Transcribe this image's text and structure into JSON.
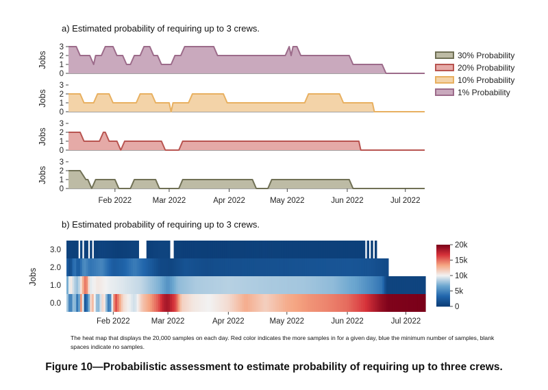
{
  "figure_caption": "Figure 10—Probabilistic assessment to estimate probability of requiring up to three crews.",
  "chart_data": [
    {
      "type": "area",
      "title": "a) Estimated probability of requiring up to 3 crews.",
      "ylabel": "Jobs",
      "ylim": [
        0,
        3
      ],
      "yticks": [
        0,
        1,
        2,
        3
      ],
      "xlim": [
        "2022-01-08",
        "2022-07-11"
      ],
      "xticks": [
        "2022-02-01",
        "2022-03-01",
        "2022-04-01",
        "2022-05-01",
        "2022-06-01",
        "2022-07-01"
      ],
      "xtick_labels": [
        "Feb 2022",
        "Mar 2022",
        "Apr 2022",
        "May 2022",
        "Jun 2022",
        "Jul 2022"
      ],
      "legend_position": "right",
      "series": [
        {
          "name": "1% Probability",
          "color": "#9c6b8a",
          "fill": "#c9a9bd",
          "points": [
            [
              "2022-01-08",
              3
            ],
            [
              "2022-01-12",
              3
            ],
            [
              "2022-01-14",
              2
            ],
            [
              "2022-01-19",
              2
            ],
            [
              "2022-01-21",
              1
            ],
            [
              "2022-01-22",
              2
            ],
            [
              "2022-01-25",
              2
            ],
            [
              "2022-01-27",
              3
            ],
            [
              "2022-01-31",
              3
            ],
            [
              "2022-02-02",
              2
            ],
            [
              "2022-02-05",
              2
            ],
            [
              "2022-02-07",
              1
            ],
            [
              "2022-02-09",
              1
            ],
            [
              "2022-02-11",
              2
            ],
            [
              "2022-02-14",
              2
            ],
            [
              "2022-02-16",
              3
            ],
            [
              "2022-02-19",
              3
            ],
            [
              "2022-02-21",
              2
            ],
            [
              "2022-02-23",
              2
            ],
            [
              "2022-02-25",
              1
            ],
            [
              "2022-03-02",
              1
            ],
            [
              "2022-03-04",
              2
            ],
            [
              "2022-03-07",
              2
            ],
            [
              "2022-03-09",
              3
            ],
            [
              "2022-03-24",
              3
            ],
            [
              "2022-03-26",
              2
            ],
            [
              "2022-04-30",
              2
            ],
            [
              "2022-05-02",
              3
            ],
            [
              "2022-05-03",
              2
            ],
            [
              "2022-05-04",
              3
            ],
            [
              "2022-05-06",
              3
            ],
            [
              "2022-05-08",
              2
            ],
            [
              "2022-06-02",
              2
            ],
            [
              "2022-06-04",
              1
            ],
            [
              "2022-06-19",
              1
            ],
            [
              "2022-06-21",
              0
            ],
            [
              "2022-07-11",
              0
            ]
          ]
        },
        {
          "name": "10% Probability",
          "color": "#e8b060",
          "fill": "#f3d3a8",
          "points": [
            [
              "2022-01-08",
              2
            ],
            [
              "2022-01-14",
              2
            ],
            [
              "2022-01-16",
              1
            ],
            [
              "2022-01-21",
              1
            ],
            [
              "2022-01-23",
              2
            ],
            [
              "2022-01-29",
              2
            ],
            [
              "2022-01-31",
              1
            ],
            [
              "2022-02-12",
              1
            ],
            [
              "2022-02-14",
              2
            ],
            [
              "2022-02-20",
              2
            ],
            [
              "2022-02-22",
              1
            ],
            [
              "2022-03-01",
              1
            ],
            [
              "2022-03-02",
              0
            ],
            [
              "2022-03-03",
              1
            ],
            [
              "2022-03-11",
              1
            ],
            [
              "2022-03-13",
              2
            ],
            [
              "2022-03-29",
              2
            ],
            [
              "2022-03-31",
              1
            ],
            [
              "2022-05-10",
              1
            ],
            [
              "2022-05-12",
              2
            ],
            [
              "2022-05-28",
              2
            ],
            [
              "2022-05-30",
              1
            ],
            [
              "2022-06-14",
              1
            ],
            [
              "2022-06-15",
              0
            ],
            [
              "2022-07-11",
              0
            ]
          ]
        },
        {
          "name": "20% Probability",
          "color": "#b85450",
          "fill": "#e5aaa7",
          "points": [
            [
              "2022-01-08",
              2
            ],
            [
              "2022-01-14",
              2
            ],
            [
              "2022-01-16",
              1
            ],
            [
              "2022-01-24",
              1
            ],
            [
              "2022-01-26",
              2
            ],
            [
              "2022-01-27",
              2
            ],
            [
              "2022-01-29",
              1
            ],
            [
              "2022-02-02",
              1
            ],
            [
              "2022-02-04",
              0
            ],
            [
              "2022-02-06",
              1
            ],
            [
              "2022-02-25",
              1
            ],
            [
              "2022-02-27",
              0
            ],
            [
              "2022-03-06",
              0
            ],
            [
              "2022-03-08",
              1
            ],
            [
              "2022-06-07",
              1
            ],
            [
              "2022-06-08",
              0
            ],
            [
              "2022-07-11",
              0
            ]
          ]
        },
        {
          "name": "30% Probability",
          "color": "#707055",
          "fill": "#bdbba5",
          "points": [
            [
              "2022-01-08",
              2
            ],
            [
              "2022-01-14",
              2
            ],
            [
              "2022-01-17",
              1
            ],
            [
              "2022-01-18",
              1
            ],
            [
              "2022-01-20",
              0
            ],
            [
              "2022-01-22",
              1
            ],
            [
              "2022-02-01",
              1
            ],
            [
              "2022-02-03",
              0
            ],
            [
              "2022-02-09",
              0
            ],
            [
              "2022-02-11",
              1
            ],
            [
              "2022-02-22",
              1
            ],
            [
              "2022-02-24",
              0
            ],
            [
              "2022-03-06",
              0
            ],
            [
              "2022-03-08",
              1
            ],
            [
              "2022-04-13",
              1
            ],
            [
              "2022-04-15",
              0
            ],
            [
              "2022-04-21",
              0
            ],
            [
              "2022-04-23",
              1
            ],
            [
              "2022-06-02",
              1
            ],
            [
              "2022-06-04",
              0
            ],
            [
              "2022-07-11",
              0
            ]
          ]
        }
      ]
    },
    {
      "type": "heatmap",
      "title": "b) Estimated probability of requiring up to 3 crews.",
      "ylabel": "Jobs",
      "ylim": [
        -0.5,
        3.5
      ],
      "yticks": [
        0,
        1,
        2,
        3
      ],
      "ytick_labels": [
        "0.0",
        "1.0",
        "2.0",
        "3.0"
      ],
      "xlim": [
        "2022-01-08",
        "2022-07-11"
      ],
      "xticks": [
        "2022-02-01",
        "2022-03-01",
        "2022-04-01",
        "2022-05-01",
        "2022-06-01",
        "2022-07-01"
      ],
      "xtick_labels": [
        "Feb 2022",
        "Mar 2022",
        "Apr 2022",
        "May 2022",
        "Jun 2022",
        "Jul 2022"
      ],
      "colorscale": [
        "#0b3c75",
        "#2166ac",
        "#6ea8d0",
        "#f2f2f2",
        "#f5a582",
        "#d6323a",
        "#7a0019"
      ],
      "colorbar": {
        "min": 0,
        "max": 20000,
        "ticks": [
          0,
          5000,
          10000,
          15000,
          20000
        ],
        "tick_labels": [
          "0",
          "5k",
          "10k",
          "15k",
          "20k"
        ]
      },
      "rows": [
        {
          "jobs": 0,
          "samples": [
            [
              "2022-01-08",
              9500
            ],
            [
              "2022-01-10",
              3500
            ],
            [
              "2022-01-12",
              9000
            ],
            [
              "2022-01-14",
              2500
            ],
            [
              "2022-01-16",
              17500
            ],
            [
              "2022-01-17",
              1500
            ],
            [
              "2022-01-19",
              4500
            ],
            [
              "2022-01-21",
              13500
            ],
            [
              "2022-01-24",
              6500
            ],
            [
              "2022-01-27",
              12000
            ],
            [
              "2022-01-30",
              3000
            ],
            [
              "2022-02-02",
              16500
            ],
            [
              "2022-02-06",
              11000
            ],
            [
              "2022-02-12",
              9000
            ],
            [
              "2022-02-16",
              12000
            ],
            [
              "2022-02-20",
              13500
            ],
            [
              "2022-02-24",
              15500
            ],
            [
              "2022-02-27",
              18000
            ],
            [
              "2022-03-01",
              18500
            ],
            [
              "2022-03-05",
              16000
            ],
            [
              "2022-03-08",
              11500
            ],
            [
              "2022-03-14",
              10500
            ],
            [
              "2022-03-22",
              10000
            ],
            [
              "2022-04-01",
              11000
            ],
            [
              "2022-04-10",
              13000
            ],
            [
              "2022-04-20",
              11500
            ],
            [
              "2022-05-01",
              13000
            ],
            [
              "2022-05-12",
              13800
            ],
            [
              "2022-05-22",
              14300
            ],
            [
              "2022-06-01",
              15000
            ],
            [
              "2022-06-10",
              16500
            ],
            [
              "2022-06-18",
              19000
            ],
            [
              "2022-06-22",
              19800
            ],
            [
              "2022-07-11",
              20000
            ]
          ]
        },
        {
          "jobs": 1,
          "samples": [
            [
              "2022-01-08",
              5500
            ],
            [
              "2022-01-10",
              11000
            ],
            [
              "2022-01-12",
              8500
            ],
            [
              "2022-01-14",
              7500
            ],
            [
              "2022-01-16",
              12000
            ],
            [
              "2022-01-18",
              15500
            ],
            [
              "2022-01-20",
              9500
            ],
            [
              "2022-01-24",
              10500
            ],
            [
              "2022-01-30",
              9800
            ],
            [
              "2022-02-05",
              9500
            ],
            [
              "2022-02-15",
              8800
            ],
            [
              "2022-02-25",
              7000
            ],
            [
              "2022-03-01",
              5500
            ],
            [
              "2022-03-06",
              7500
            ],
            [
              "2022-03-15",
              8200
            ],
            [
              "2022-04-01",
              8500
            ],
            [
              "2022-04-20",
              8200
            ],
            [
              "2022-05-10",
              8000
            ],
            [
              "2022-05-25",
              7500
            ],
            [
              "2022-06-05",
              6500
            ],
            [
              "2022-06-14",
              5000
            ],
            [
              "2022-06-19",
              4000
            ],
            [
              "2022-06-21",
              600
            ],
            [
              "2022-07-11",
              600
            ]
          ]
        },
        {
          "jobs": 2,
          "samples": [
            [
              "2022-01-08",
              3000
            ],
            [
              "2022-01-10",
              900
            ],
            [
              "2022-01-12",
              4500
            ],
            [
              "2022-01-14",
              2200
            ],
            [
              "2022-01-17",
              5500
            ],
            [
              "2022-01-20",
              4000
            ],
            [
              "2022-01-26",
              5000
            ],
            [
              "2022-02-01",
              2500
            ],
            [
              "2022-02-06",
              3000
            ],
            [
              "2022-02-12",
              4500
            ],
            [
              "2022-02-18",
              3000
            ],
            [
              "2022-02-25",
              1000
            ],
            [
              "2022-03-03",
              800
            ],
            [
              "2022-03-10",
              1800
            ],
            [
              "2022-03-20",
              1300
            ],
            [
              "2022-04-01",
              1500
            ],
            [
              "2022-05-01",
              1700
            ],
            [
              "2022-06-01",
              2000
            ],
            [
              "2022-06-12",
              1800
            ],
            [
              "2022-06-20",
              1200
            ]
          ]
        },
        {
          "jobs": 3,
          "samples": [
            [
              "2022-01-08",
              500
            ],
            [
              "2022-01-12",
              300
            ],
            [
              "2022-01-14",
              null
            ],
            [
              "2022-01-15",
              800
            ],
            [
              "2022-01-16",
              null
            ],
            [
              "2022-01-17",
              400
            ],
            [
              "2022-01-19",
              null
            ],
            [
              "2022-01-20",
              300
            ],
            [
              "2022-01-21",
              null
            ],
            [
              "2022-01-22",
              500
            ],
            [
              "2022-01-23",
              200
            ],
            [
              "2022-01-26",
              600
            ],
            [
              "2022-02-04",
              200
            ],
            [
              "2022-02-12",
              500
            ],
            [
              "2022-02-14",
              null
            ],
            [
              "2022-02-18",
              200
            ],
            [
              "2022-02-25",
              600
            ],
            [
              "2022-03-02",
              null
            ],
            [
              "2022-03-04",
              300
            ],
            [
              "2022-03-20",
              200
            ],
            [
              "2022-04-20",
              400
            ],
            [
              "2022-05-10",
              300
            ],
            [
              "2022-06-10",
              null
            ],
            [
              "2022-06-11",
              300
            ],
            [
              "2022-06-12",
              null
            ],
            [
              "2022-06-13",
              200
            ],
            [
              "2022-06-14",
              null
            ],
            [
              "2022-06-15",
              200
            ],
            [
              "2022-06-16",
              null
            ]
          ]
        }
      ]
    }
  ],
  "heatmap_note": "The heat map that displays the 20,000 samples on each day. Red color indicates the more samples in for a given day, blue the minimum number of samples, blank spaces indicate no samples."
}
